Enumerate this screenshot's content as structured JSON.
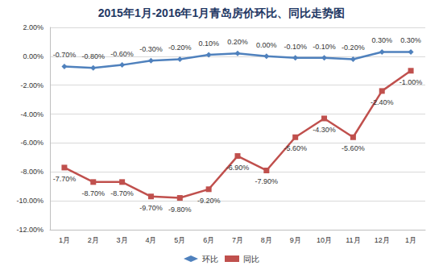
{
  "chart_data": {
    "type": "line",
    "title": "2015年1月-2016年1月青岛房价环比、同比走势图",
    "categories": [
      "1月",
      "2月",
      "3月",
      "4月",
      "5月",
      "6月",
      "7月",
      "8月",
      "9月",
      "10月",
      "11月",
      "12月",
      "1月"
    ],
    "series": [
      {
        "name": "环比",
        "color": "#4f81bd",
        "marker": "diamond",
        "values": [
          -0.7,
          -0.8,
          -0.6,
          -0.3,
          -0.2,
          0.1,
          0.2,
          0.0,
          -0.1,
          -0.1,
          -0.2,
          0.3,
          0.3
        ],
        "value_labels": [
          "-0.70%",
          "-0.80%",
          "-0.60%",
          "-0.30%",
          "-0.20%",
          "0.10%",
          "0.20%",
          "0.00%",
          "-0.10%",
          "-0.10%",
          "-0.20%",
          "0.30%",
          "0.30%"
        ]
      },
      {
        "name": "同比",
        "color": "#c0504d",
        "marker": "square",
        "values": [
          -7.7,
          -8.7,
          -8.7,
          -9.7,
          -9.8,
          -9.2,
          -6.9,
          -7.9,
          -5.6,
          -4.3,
          -5.6,
          -2.4,
          -1.0
        ],
        "value_labels": [
          "-7.70%",
          "-8.70%",
          "-8.70%",
          "-9.70%",
          "-9.80%",
          "-9.20%",
          "-6.90%",
          "-7.90%",
          "-5.60%",
          "-4.30%",
          "-5.60%",
          "-2.40%",
          "-1.00%"
        ]
      }
    ],
    "ylim": [
      -12,
      2
    ],
    "yticks": [
      {
        "value": -12,
        "label": "-12.00%"
      },
      {
        "value": -10,
        "label": "-10.00%"
      },
      {
        "value": -8,
        "label": "-8.00%"
      },
      {
        "value": -6,
        "label": "-6.00%"
      },
      {
        "value": -4,
        "label": "-4.00%"
      },
      {
        "value": -2,
        "label": "-2.00%"
      },
      {
        "value": 0,
        "label": "0.00%"
      },
      {
        "value": 2,
        "label": "2.00%"
      }
    ],
    "grid": true,
    "legend": "bottom",
    "data_labels": true
  }
}
